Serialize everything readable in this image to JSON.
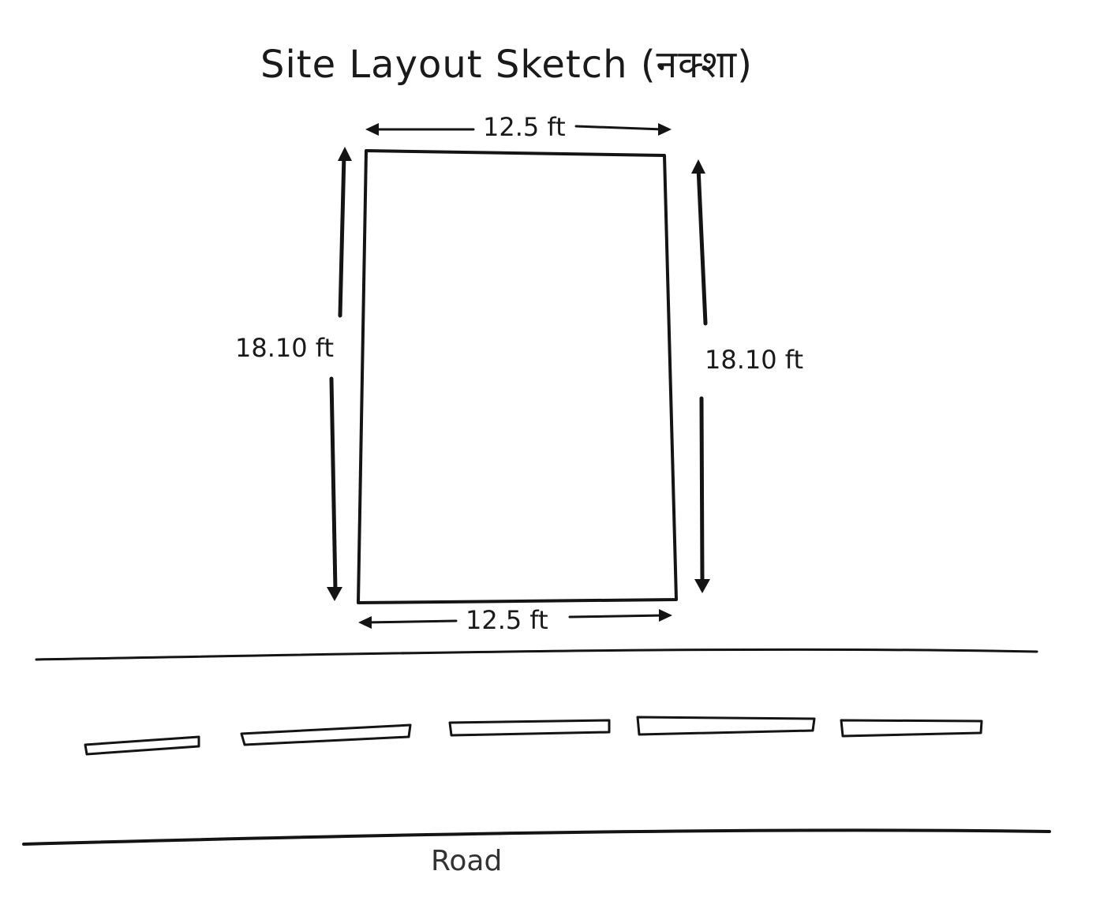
{
  "title": "Site Layout Sketch (नक्शा)",
  "plot": {
    "top_dimension": "12.5 ft",
    "bottom_dimension": "12.5 ft",
    "left_dimension": "18.10 ft",
    "right_dimension": "18.10 ft"
  },
  "road": {
    "label": "Road",
    "lane_dash_count": 5
  },
  "colors": {
    "ink": "#141414",
    "paper": "#ffffff"
  }
}
